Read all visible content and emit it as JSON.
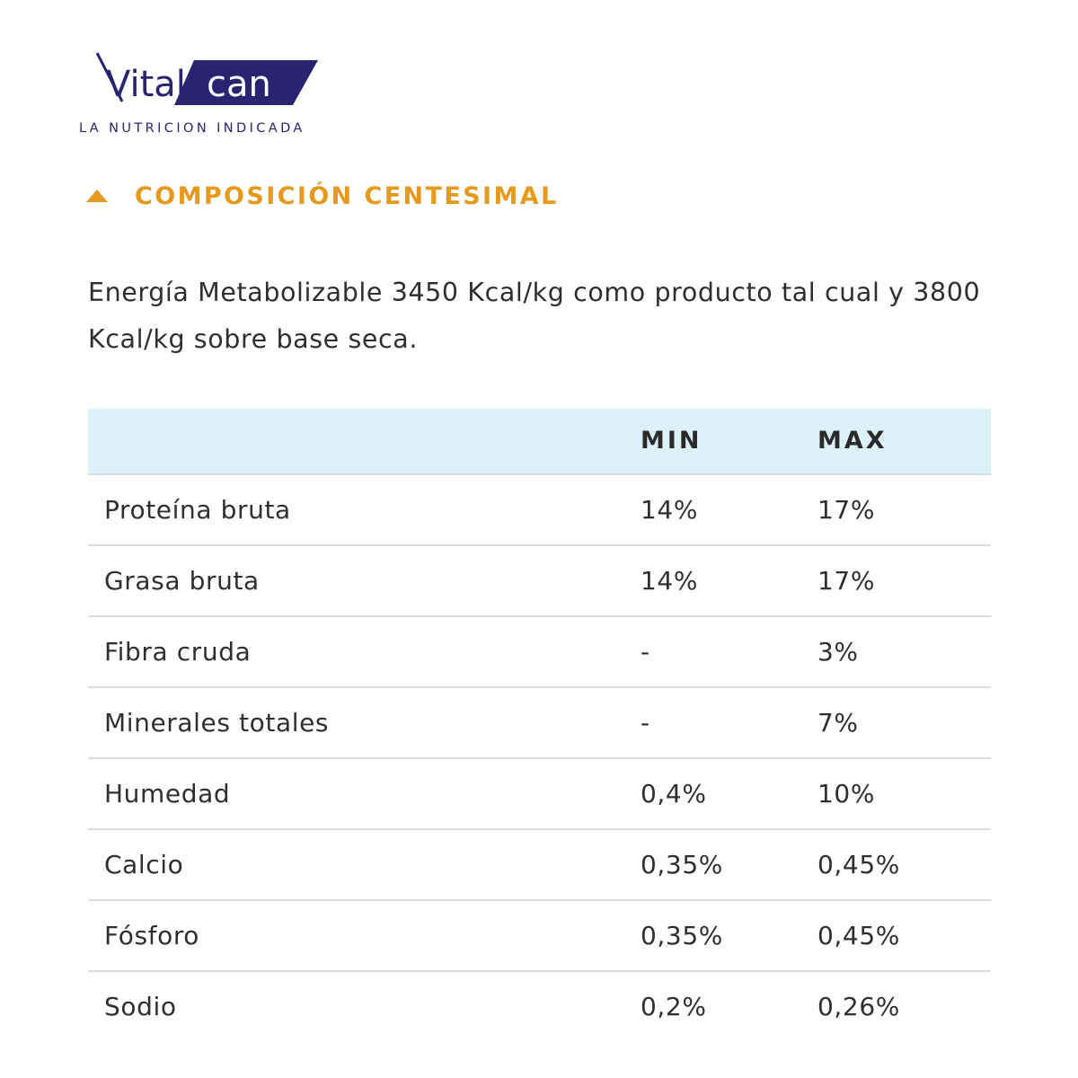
{
  "brand": {
    "logo_text_1": "Vital",
    "logo_text_2": "can",
    "tagline": "LA NUTRICION INDICADA",
    "primary_color": "#2a2470"
  },
  "section": {
    "title": "COMPOSICIÓN CENTESIMAL",
    "toggle_icon": "triangle-up-icon",
    "accent_color": "#e59a1f"
  },
  "intro_text": "Energía Metabolizable 3450 Kcal/kg como producto tal cual y 3800 Kcal/kg sobre base seca.",
  "table": {
    "header_bg": "#ddf1f8",
    "columns": [
      "",
      "MIN",
      "MAX"
    ],
    "rows": [
      [
        "Proteína bruta",
        "14%",
        "17%"
      ],
      [
        "Grasa bruta",
        "14%",
        "17%"
      ],
      [
        "Fibra cruda",
        "-",
        "3%"
      ],
      [
        "Minerales totales",
        "-",
        "7%"
      ],
      [
        "Humedad",
        "0,4%",
        "10%"
      ],
      [
        "Calcio",
        "0,35%",
        "0,45%"
      ],
      [
        "Fósforo",
        "0,35%",
        "0,45%"
      ],
      [
        "Sodio",
        "0,2%",
        "0,26%"
      ]
    ]
  }
}
